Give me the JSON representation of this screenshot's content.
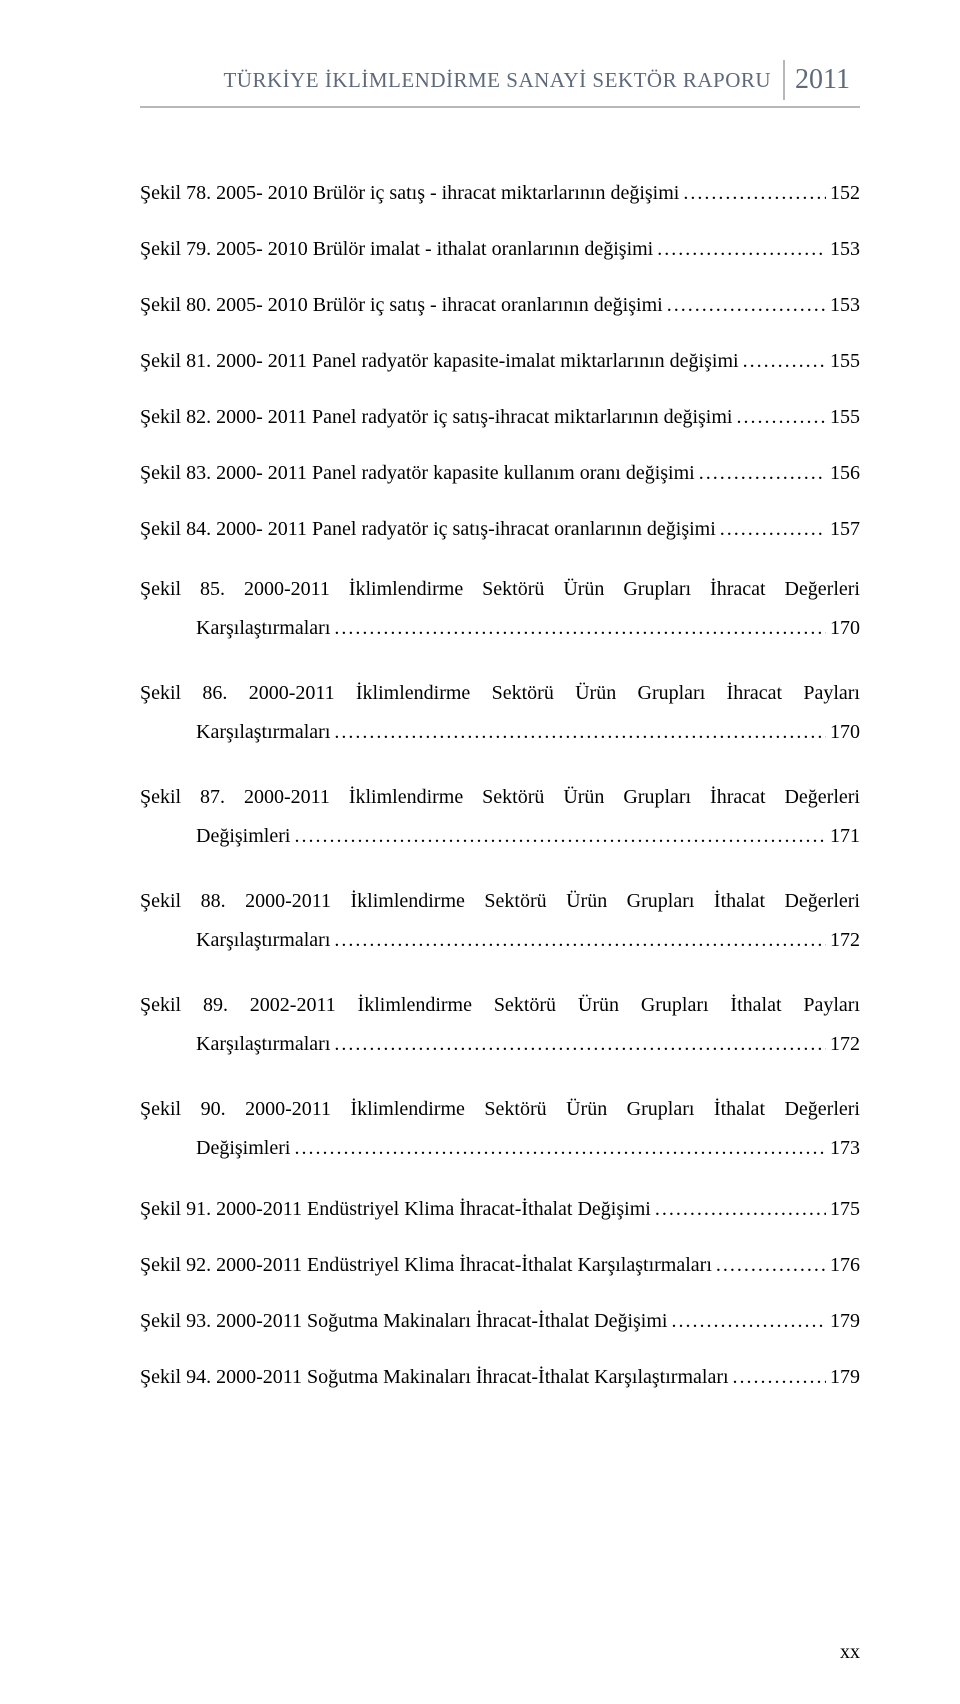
{
  "header": {
    "title": "TÜRKİYE İKLİMLENDİRME SANAYİ SEKTÖR RAPORU",
    "year": "2011"
  },
  "entries": [
    {
      "label": "Şekil 78. 2005- 2010 Brülör iç satış - ihracat miktarlarının değişimi",
      "page": "152",
      "multi": false
    },
    {
      "label": "Şekil 79. 2005- 2010 Brülör imalat - ithalat oranlarının değişimi",
      "page": "153",
      "multi": false
    },
    {
      "label": "Şekil 80. 2005- 2010 Brülör iç satış - ihracat oranlarının değişimi",
      "page": "153",
      "multi": false
    },
    {
      "label": "Şekil 81. 2000- 2011 Panel radyatör kapasite-imalat miktarlarının değişimi",
      "page": "155",
      "multi": false
    },
    {
      "label": "Şekil 82. 2000- 2011 Panel radyatör iç satış-ihracat miktarlarının değişimi",
      "page": "155",
      "multi": false
    },
    {
      "label": "Şekil 83. 2000- 2011 Panel radyatör kapasite kullanım oranı değişimi",
      "page": "156",
      "multi": false
    },
    {
      "label": "Şekil 84. 2000- 2011 Panel radyatör iç satış-ihracat oranlarının değişimi",
      "page": "157",
      "multi": false
    },
    {
      "label1": "Şekil 85. 2000-2011 İklimlendirme Sektörü Ürün Grupları İhracat Değerleri",
      "label2": "Karşılaştırmaları",
      "page": "170",
      "multi": true
    },
    {
      "label1": "Şekil 86. 2000-2011 İklimlendirme Sektörü Ürün Grupları İhracat Payları",
      "label2": "Karşılaştırmaları",
      "page": "170",
      "multi": true
    },
    {
      "label1": "Şekil 87. 2000-2011 İklimlendirme Sektörü Ürün Grupları İhracat Değerleri",
      "label2": "Değişimleri",
      "page": "171",
      "multi": true
    },
    {
      "label1": "Şekil 88. 2000-2011 İklimlendirme Sektörü Ürün Grupları İthalat Değerleri",
      "label2": "Karşılaştırmaları",
      "page": "172",
      "multi": true
    },
    {
      "label1": "Şekil 89. 2002-2011 İklimlendirme Sektörü Ürün Grupları İthalat Payları",
      "label2": "Karşılaştırmaları",
      "page": "172",
      "multi": true
    },
    {
      "label1": "Şekil 90. 2000-2011 İklimlendirme Sektörü Ürün Grupları İthalat Değerleri",
      "label2": "Değişimleri",
      "page": "173",
      "multi": true
    },
    {
      "label": "Şekil 91. 2000-2011 Endüstriyel Klima İhracat-İthalat Değişimi",
      "page": "175",
      "multi": false
    },
    {
      "label": "Şekil 92. 2000-2011 Endüstriyel Klima İhracat-İthalat Karşılaştırmaları",
      "page": "176",
      "multi": false
    },
    {
      "label": "Şekil 93. 2000-2011 Soğutma Makinaları İhracat-İthalat Değişimi",
      "page": "179",
      "multi": false
    },
    {
      "label": "Şekil 94. 2000-2011 Soğutma Makinaları İhracat-İthalat Karşılaştırmaları",
      "page": "179",
      "multi": false
    }
  ],
  "pageNumber": "xx"
}
